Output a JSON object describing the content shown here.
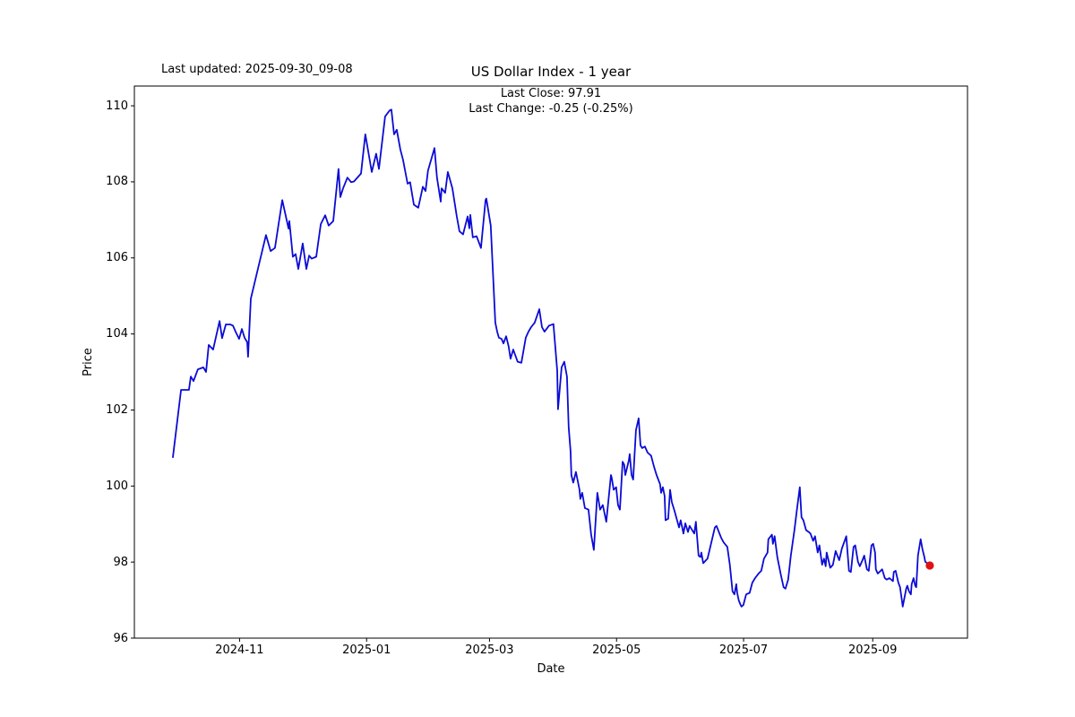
{
  "figure": {
    "last_updated": "Last updated: 2025-09-30_09-08",
    "title": "US Dollar Index - 1 year",
    "subtitle_line1": "Last Close: 97.91",
    "subtitle_line2": "Last Change: -0.25 (-0.25%)",
    "xlabel": "Date",
    "ylabel": "Price"
  },
  "chart_data": {
    "type": "line",
    "title": "US Dollar Index - 1 year",
    "xlabel": "Date",
    "ylabel": "Price",
    "grid": false,
    "legend": false,
    "line_color": "#0b0bd6",
    "marker_color": "#e01212",
    "last_close": 97.91,
    "last_change_abs": -0.25,
    "last_change_pct": "-0.25%",
    "x_epoch": "2024-09-30",
    "x_unit": "days_since_x_epoch",
    "xlim_days": [
      -18.5,
      381.5
    ],
    "ylim": [
      96,
      110.52
    ],
    "y_ticks": [
      96,
      98,
      100,
      102,
      104,
      106,
      108,
      110
    ],
    "x_ticks": [
      {
        "day": 32,
        "label": "2024-11"
      },
      {
        "day": 93,
        "label": "2025-01"
      },
      {
        "day": 152,
        "label": "2025-03"
      },
      {
        "day": 213,
        "label": "2025-05"
      },
      {
        "day": 274,
        "label": "2025-07"
      },
      {
        "day": 336,
        "label": "2025-09"
      }
    ],
    "last_point": {
      "day": 363.4,
      "value": 97.91
    },
    "points": [
      [
        0,
        100.76
      ],
      [
        3.9,
        102.53
      ],
      [
        7.7,
        102.53
      ],
      [
        8.6,
        102.88
      ],
      [
        9.9,
        102.76
      ],
      [
        12,
        103.07
      ],
      [
        14.6,
        103.12
      ],
      [
        15.9,
        103
      ],
      [
        17.2,
        103.71
      ],
      [
        19.3,
        103.59
      ],
      [
        22.4,
        104.34
      ],
      [
        23.6,
        103.89
      ],
      [
        25.4,
        104.25
      ],
      [
        27.5,
        104.25
      ],
      [
        28.8,
        104.22
      ],
      [
        30.1,
        104.06
      ],
      [
        31.8,
        103.87
      ],
      [
        33.1,
        104.13
      ],
      [
        34.4,
        103.9
      ],
      [
        35.7,
        103.78
      ],
      [
        36.1,
        103.4
      ],
      [
        37.4,
        104.93
      ],
      [
        44.7,
        106.6
      ],
      [
        46.9,
        106.18
      ],
      [
        49,
        106.26
      ],
      [
        52.5,
        107.52
      ],
      [
        55.5,
        106.77
      ],
      [
        55.9,
        106.97
      ],
      [
        57.6,
        106.03
      ],
      [
        58.9,
        106.1
      ],
      [
        60.2,
        105.71
      ],
      [
        62.3,
        106.38
      ],
      [
        64.1,
        105.71
      ],
      [
        65.4,
        106.06
      ],
      [
        66.6,
        105.98
      ],
      [
        68.8,
        106.03
      ],
      [
        71,
        106.89
      ],
      [
        73.1,
        107.12
      ],
      [
        74.8,
        106.85
      ],
      [
        77,
        106.97
      ],
      [
        79.5,
        108.34
      ],
      [
        80.4,
        107.6
      ],
      [
        81.7,
        107.83
      ],
      [
        83.8,
        108.11
      ],
      [
        85.6,
        107.99
      ],
      [
        86.9,
        108.01
      ],
      [
        90.3,
        108.22
      ],
      [
        92.4,
        109.25
      ],
      [
        95.5,
        108.26
      ],
      [
        97.6,
        108.74
      ],
      [
        98.9,
        108.34
      ],
      [
        101.9,
        109.72
      ],
      [
        104.1,
        109.88
      ],
      [
        104.9,
        109.9
      ],
      [
        106.2,
        109.25
      ],
      [
        107.5,
        109.37
      ],
      [
        109.2,
        108.85
      ],
      [
        110.5,
        108.58
      ],
      [
        112.7,
        107.95
      ],
      [
        113.9,
        107.99
      ],
      [
        115.7,
        107.4
      ],
      [
        117.8,
        107.32
      ],
      [
        120,
        107.87
      ],
      [
        121.3,
        107.76
      ],
      [
        122.5,
        108.3
      ],
      [
        125.6,
        108.89
      ],
      [
        126.8,
        108.11
      ],
      [
        128.6,
        107.48
      ],
      [
        129,
        107.83
      ],
      [
        130.7,
        107.71
      ],
      [
        132,
        108.26
      ],
      [
        134.2,
        107.83
      ],
      [
        136.3,
        107.09
      ],
      [
        137.6,
        106.7
      ],
      [
        139.3,
        106.62
      ],
      [
        141.5,
        107.09
      ],
      [
        142.3,
        106.78
      ],
      [
        142.8,
        107.13
      ],
      [
        144,
        106.54
      ],
      [
        145.8,
        106.57
      ],
      [
        147.1,
        106.38
      ],
      [
        147.9,
        106.26
      ],
      [
        150.1,
        107.52
      ],
      [
        150.5,
        107.56
      ],
      [
        152.6,
        106.85
      ],
      [
        154.8,
        104.3
      ],
      [
        155.7,
        104.06
      ],
      [
        156.5,
        103.9
      ],
      [
        157.8,
        103.87
      ],
      [
        158.7,
        103.75
      ],
      [
        160,
        103.94
      ],
      [
        161.2,
        103.67
      ],
      [
        162.1,
        103.35
      ],
      [
        163.4,
        103.59
      ],
      [
        165.5,
        103.27
      ],
      [
        167.3,
        103.24
      ],
      [
        169.4,
        103.9
      ],
      [
        170.7,
        104.06
      ],
      [
        172,
        104.18
      ],
      [
        173.7,
        104.3
      ],
      [
        175.9,
        104.65
      ],
      [
        177.2,
        104.18
      ],
      [
        178.4,
        104.06
      ],
      [
        180.6,
        104.22
      ],
      [
        182.7,
        104.26
      ],
      [
        184.5,
        103.04
      ],
      [
        184.9,
        102.02
      ],
      [
        186.6,
        103.12
      ],
      [
        187.9,
        103.27
      ],
      [
        189.2,
        102.88
      ],
      [
        190,
        101.55
      ],
      [
        190.9,
        100.92
      ],
      [
        191.3,
        100.29
      ],
      [
        192.2,
        100.09
      ],
      [
        193.5,
        100.37
      ],
      [
        195.2,
        99.9
      ],
      [
        195.6,
        99.66
      ],
      [
        196.5,
        99.82
      ],
      [
        197.8,
        99.42
      ],
      [
        199.5,
        99.38
      ],
      [
        200.8,
        98.72
      ],
      [
        202.1,
        98.32
      ],
      [
        203.8,
        99.82
      ],
      [
        205.1,
        99.38
      ],
      [
        206.4,
        99.5
      ],
      [
        208.1,
        99.06
      ],
      [
        210.3,
        100.29
      ],
      [
        210.7,
        100.21
      ],
      [
        211.6,
        99.9
      ],
      [
        212.8,
        99.97
      ],
      [
        213.7,
        99.5
      ],
      [
        214.6,
        99.38
      ],
      [
        215.9,
        100.64
      ],
      [
        216.7,
        100.56
      ],
      [
        217.2,
        100.29
      ],
      [
        218.9,
        100.68
      ],
      [
        219.3,
        100.84
      ],
      [
        220.2,
        100.29
      ],
      [
        221,
        100.17
      ],
      [
        222.3,
        101.47
      ],
      [
        223.6,
        101.78
      ],
      [
        224.5,
        101.07
      ],
      [
        225.3,
        101
      ],
      [
        226.6,
        101.04
      ],
      [
        227.9,
        100.88
      ],
      [
        229.6,
        100.8
      ],
      [
        230.9,
        100.52
      ],
      [
        232.2,
        100.29
      ],
      [
        233.9,
        100.05
      ],
      [
        234.4,
        99.82
      ],
      [
        235.2,
        99.97
      ],
      [
        236.1,
        99.74
      ],
      [
        236.5,
        99.1
      ],
      [
        237.8,
        99.14
      ],
      [
        238.7,
        99.9
      ],
      [
        239.5,
        99.58
      ],
      [
        240.8,
        99.35
      ],
      [
        243,
        98.91
      ],
      [
        243.8,
        99.1
      ],
      [
        244.7,
        98.87
      ],
      [
        245.1,
        98.75
      ],
      [
        246,
        99.02
      ],
      [
        247.3,
        98.79
      ],
      [
        248.1,
        98.95
      ],
      [
        250.3,
        98.75
      ],
      [
        251.1,
        99.06
      ],
      [
        252.4,
        98.17
      ],
      [
        253.3,
        98.13
      ],
      [
        253.7,
        98.25
      ],
      [
        254.6,
        97.97
      ],
      [
        256.7,
        98.09
      ],
      [
        260.2,
        98.91
      ],
      [
        261,
        98.95
      ],
      [
        263.2,
        98.64
      ],
      [
        264.4,
        98.52
      ],
      [
        266.2,
        98.4
      ],
      [
        267.4,
        97.93
      ],
      [
        268.7,
        97.23
      ],
      [
        269.6,
        97.15
      ],
      [
        270.5,
        97.42
      ],
      [
        270.9,
        97.19
      ],
      [
        271.7,
        96.99
      ],
      [
        272.6,
        96.87
      ],
      [
        273,
        96.83
      ],
      [
        273.9,
        96.87
      ],
      [
        275.2,
        97.15
      ],
      [
        276.9,
        97.19
      ],
      [
        278.2,
        97.46
      ],
      [
        279.5,
        97.58
      ],
      [
        281.2,
        97.7
      ],
      [
        282.5,
        97.77
      ],
      [
        283.8,
        98.09
      ],
      [
        285.5,
        98.25
      ],
      [
        285.9,
        98.6
      ],
      [
        287.6,
        98.72
      ],
      [
        288.1,
        98.48
      ],
      [
        288.9,
        98.68
      ],
      [
        290.2,
        98.13
      ],
      [
        291.9,
        97.66
      ],
      [
        293.2,
        97.34
      ],
      [
        294.1,
        97.3
      ],
      [
        295.4,
        97.54
      ],
      [
        296.7,
        98.17
      ],
      [
        298.4,
        98.84
      ],
      [
        299.7,
        99.42
      ],
      [
        301,
        99.97
      ],
      [
        301.8,
        99.18
      ],
      [
        302.7,
        99.1
      ],
      [
        304,
        98.84
      ],
      [
        305.3,
        98.79
      ],
      [
        306.1,
        98.75
      ],
      [
        307.4,
        98.56
      ],
      [
        308.3,
        98.68
      ],
      [
        309.6,
        98.25
      ],
      [
        310.4,
        98.44
      ],
      [
        311.7,
        97.93
      ],
      [
        312.6,
        98.09
      ],
      [
        313.4,
        97.89
      ],
      [
        313.9,
        98.25
      ],
      [
        315.6,
        97.85
      ],
      [
        316.9,
        97.93
      ],
      [
        318.2,
        98.29
      ],
      [
        319.9,
        98.05
      ],
      [
        321.2,
        98.36
      ],
      [
        323.3,
        98.68
      ],
      [
        324.6,
        97.77
      ],
      [
        325.5,
        97.74
      ],
      [
        326.8,
        98.4
      ],
      [
        327.6,
        98.44
      ],
      [
        328.9,
        98.01
      ],
      [
        329.8,
        97.89
      ],
      [
        331.1,
        98.05
      ],
      [
        331.9,
        98.17
      ],
      [
        333.2,
        97.81
      ],
      [
        334.1,
        97.77
      ],
      [
        335.4,
        98.44
      ],
      [
        336.2,
        98.48
      ],
      [
        337.1,
        98.25
      ],
      [
        337.5,
        97.81
      ],
      [
        338.4,
        97.7
      ],
      [
        339.2,
        97.74
      ],
      [
        340.5,
        97.81
      ],
      [
        341.8,
        97.58
      ],
      [
        342.7,
        97.54
      ],
      [
        344,
        97.58
      ],
      [
        345.7,
        97.5
      ],
      [
        346.1,
        97.74
      ],
      [
        347,
        97.77
      ],
      [
        348.3,
        97.46
      ],
      [
        349.1,
        97.34
      ],
      [
        350,
        96.99
      ],
      [
        350.4,
        96.83
      ],
      [
        352.1,
        97.3
      ],
      [
        352.6,
        97.38
      ],
      [
        353.4,
        97.23
      ],
      [
        354.3,
        97.15
      ],
      [
        354.7,
        97.42
      ],
      [
        355.6,
        97.58
      ],
      [
        356.4,
        97.38
      ],
      [
        356.9,
        97.34
      ],
      [
        357.7,
        98.17
      ],
      [
        359,
        98.6
      ],
      [
        359.9,
        98.33
      ],
      [
        360.8,
        98.13
      ],
      [
        361.2,
        98.01
      ],
      [
        362.1,
        97.97
      ],
      [
        363.4,
        97.91
      ]
    ]
  }
}
